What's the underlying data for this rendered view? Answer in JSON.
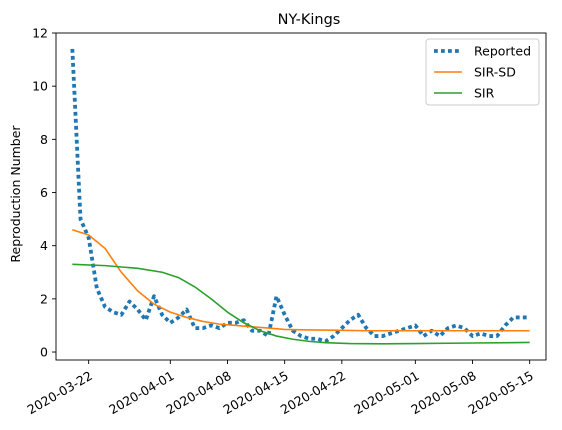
{
  "chart_data": {
    "type": "line",
    "title": "NY-Kings",
    "xlabel": "",
    "ylabel": "Reproduction Number",
    "x_range": [
      "2020-03-18",
      "2020-05-17"
    ],
    "ylim": [
      -0.3,
      12
    ],
    "y_ticks": [
      0,
      2,
      4,
      6,
      8,
      10,
      12
    ],
    "x_ticks": [
      "2020-03-22",
      "2020-04-01",
      "2020-04-08",
      "2020-04-15",
      "2020-04-22",
      "2020-05-01",
      "2020-05-08",
      "2020-05-15"
    ],
    "grid": false,
    "legend_position": "top-right",
    "series": [
      {
        "name": "Reported",
        "style": "dotted",
        "color": "#1f77b4",
        "x": [
          "2020-03-20",
          "2020-03-21",
          "2020-03-22",
          "2020-03-23",
          "2020-03-24",
          "2020-03-25",
          "2020-03-26",
          "2020-03-27",
          "2020-03-28",
          "2020-03-29",
          "2020-03-30",
          "2020-03-31",
          "2020-04-01",
          "2020-04-02",
          "2020-04-03",
          "2020-04-04",
          "2020-04-05",
          "2020-04-06",
          "2020-04-07",
          "2020-04-08",
          "2020-04-09",
          "2020-04-10",
          "2020-04-11",
          "2020-04-12",
          "2020-04-13",
          "2020-04-14",
          "2020-04-15",
          "2020-04-16",
          "2020-04-17",
          "2020-04-18",
          "2020-04-19",
          "2020-04-20",
          "2020-04-21",
          "2020-04-22",
          "2020-04-23",
          "2020-04-24",
          "2020-04-25",
          "2020-04-26",
          "2020-04-27",
          "2020-04-28",
          "2020-04-29",
          "2020-04-30",
          "2020-05-01",
          "2020-05-02",
          "2020-05-03",
          "2020-05-04",
          "2020-05-05",
          "2020-05-06",
          "2020-05-07",
          "2020-05-08",
          "2020-05-09",
          "2020-05-10",
          "2020-05-11",
          "2020-05-12",
          "2020-05-13",
          "2020-05-14",
          "2020-05-15"
        ],
        "values": [
          11.4,
          5.0,
          4.3,
          2.4,
          1.7,
          1.5,
          1.4,
          1.9,
          1.6,
          1.2,
          2.1,
          1.4,
          1.1,
          1.3,
          1.6,
          0.9,
          0.9,
          1.0,
          0.9,
          1.1,
          1.1,
          1.2,
          0.8,
          0.8,
          0.6,
          2.1,
          1.4,
          0.8,
          0.6,
          0.5,
          0.5,
          0.4,
          0.6,
          0.9,
          1.2,
          1.4,
          0.9,
          0.6,
          0.6,
          0.7,
          0.8,
          0.9,
          1.0,
          0.6,
          0.8,
          0.6,
          0.9,
          1.0,
          0.9,
          0.6,
          0.7,
          0.6,
          0.6,
          1.0,
          1.3,
          1.3,
          1.3
        ]
      },
      {
        "name": "SIR-SD",
        "style": "solid",
        "color": "#ff7f0e",
        "x": [
          "2020-03-20",
          "2020-03-22",
          "2020-03-24",
          "2020-03-26",
          "2020-03-28",
          "2020-03-30",
          "2020-04-01",
          "2020-04-03",
          "2020-04-05",
          "2020-04-07",
          "2020-04-09",
          "2020-04-11",
          "2020-04-13",
          "2020-04-15",
          "2020-04-18",
          "2020-04-21",
          "2020-04-25",
          "2020-05-01",
          "2020-05-08",
          "2020-05-15"
        ],
        "values": [
          4.6,
          4.4,
          3.9,
          3.0,
          2.3,
          1.8,
          1.5,
          1.3,
          1.15,
          1.05,
          1.0,
          0.95,
          0.9,
          0.85,
          0.83,
          0.82,
          0.8,
          0.8,
          0.8,
          0.8
        ]
      },
      {
        "name": "SIR",
        "style": "solid",
        "color": "#2ca02c",
        "x": [
          "2020-03-20",
          "2020-03-24",
          "2020-03-28",
          "2020-03-31",
          "2020-04-02",
          "2020-04-04",
          "2020-04-06",
          "2020-04-08",
          "2020-04-10",
          "2020-04-12",
          "2020-04-14",
          "2020-04-16",
          "2020-04-18",
          "2020-04-20",
          "2020-04-23",
          "2020-04-27",
          "2020-05-01",
          "2020-05-08",
          "2020-05-15"
        ],
        "values": [
          3.3,
          3.25,
          3.15,
          3.0,
          2.8,
          2.45,
          2.0,
          1.5,
          1.1,
          0.8,
          0.6,
          0.48,
          0.4,
          0.35,
          0.32,
          0.31,
          0.32,
          0.34,
          0.36
        ]
      }
    ]
  }
}
